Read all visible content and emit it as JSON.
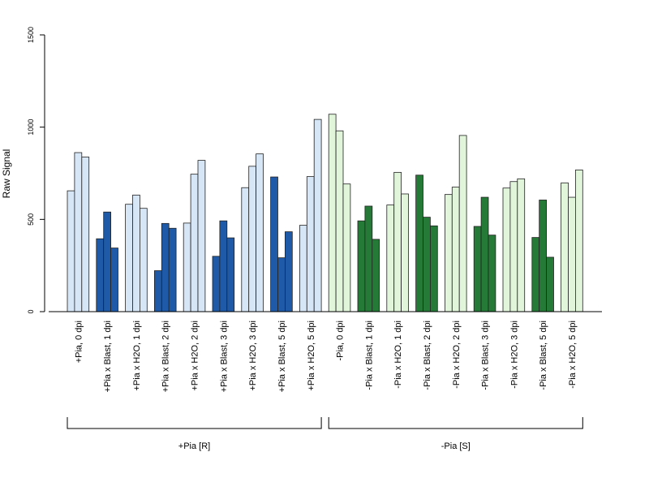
{
  "chart_data": {
    "type": "bar",
    "ylabel": "Raw Signal",
    "xlabel": "",
    "ylim": [
      0,
      1500
    ],
    "yticks": [
      0,
      500,
      1000,
      1500
    ],
    "grid": false,
    "categories": [
      "+Pia, 0 dpi",
      "+Pia x Blast, 1 dpi",
      "+Pia x H2O, 1 dpi",
      "+Pia x Blast, 2 dpi",
      "+Pia x H2O, 2 dpi",
      "+Pia x Blast, 3 dpi",
      "+Pia x H2O, 3 dpi",
      "+Pia x Blast, 5 dpi",
      "+Pia x H2O, 5 dpi",
      "-Pia, 0 dpi",
      "-Pia x Blast, 1 dpi",
      "-Pia x H2O, 1 dpi",
      "-Pia x Blast, 2 dpi",
      "-Pia x H2O, 2 dpi",
      "-Pia x Blast, 3 dpi",
      "-Pia x H2O, 3 dpi",
      "-Pia x Blast, 5 dpi",
      "-Pia x H2O, 5 dpi"
    ],
    "replicates": [
      [
        655,
        862,
        838
      ],
      [
        395,
        540,
        345
      ],
      [
        582,
        632,
        560
      ],
      [
        222,
        478,
        452
      ],
      [
        480,
        745,
        820
      ],
      [
        300,
        492,
        400
      ],
      [
        672,
        788,
        855
      ],
      [
        730,
        292,
        433
      ],
      [
        468,
        732,
        1042
      ],
      [
        1070,
        980,
        692
      ],
      [
        492,
        572,
        392
      ],
      [
        578,
        755,
        638
      ],
      [
        740,
        512,
        465
      ],
      [
        635,
        675,
        955
      ],
      [
        462,
        620,
        415
      ],
      [
        670,
        705,
        720
      ],
      [
        402,
        605,
        295
      ],
      [
        698,
        620,
        768
      ]
    ],
    "groups": [
      {
        "label": "+Pia [R]",
        "category_range": [
          0,
          8
        ]
      },
      {
        "label": "-Pia [S]",
        "category_range": [
          9,
          17
        ]
      }
    ],
    "colors": {
      "plus_h2o": "#d6e6f7",
      "plus_blast": "#1f5aa8",
      "minus_h2o": "#e0f5da",
      "minus_blast": "#257a37",
      "bar_stroke": "#222222"
    }
  }
}
